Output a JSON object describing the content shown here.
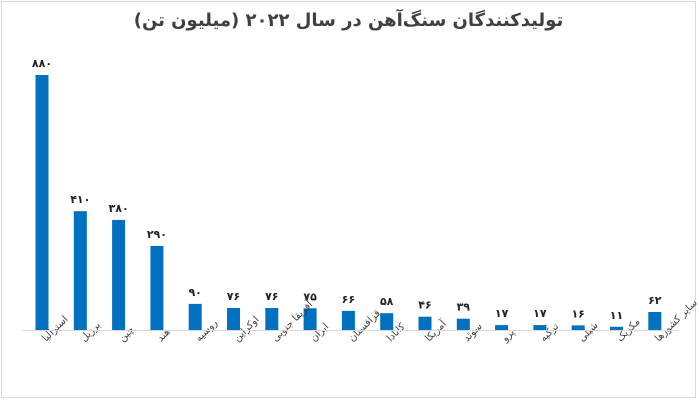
{
  "chart_data": {
    "type": "bar",
    "title": "تولیدکنندگان سنگ‌آهن در سال ۲۰۲۲ (میلیون تن)",
    "categories": [
      "استرالیا",
      "برزیل",
      "چین",
      "هند",
      "روسیه",
      "اوکراین",
      "آفریقا جنوبی",
      "ایران",
      "قزاقستان",
      "کانادا",
      "آمریکا",
      "سوئد",
      "پرو",
      "ترکیه",
      "شیلی",
      "مکزیک",
      "سایر کشورها"
    ],
    "value_labels": [
      "۸۸۰",
      "۴۱۰",
      "۳۸۰",
      "۲۹۰",
      "۹۰",
      "۷۶",
      "۷۶",
      "۷۵",
      "۶۶",
      "۵۸",
      "۴۶",
      "۳۹",
      "۱۷",
      "۱۷",
      "۱۶",
      "۱۱",
      "۶۲"
    ],
    "values": [
      880,
      410,
      380,
      290,
      90,
      76,
      76,
      75,
      66,
      58,
      46,
      39,
      17,
      17,
      16,
      11,
      62
    ],
    "bar_color": "#0070C0",
    "ylim": [
      0,
      880
    ],
    "grid": false,
    "legend": "none"
  }
}
